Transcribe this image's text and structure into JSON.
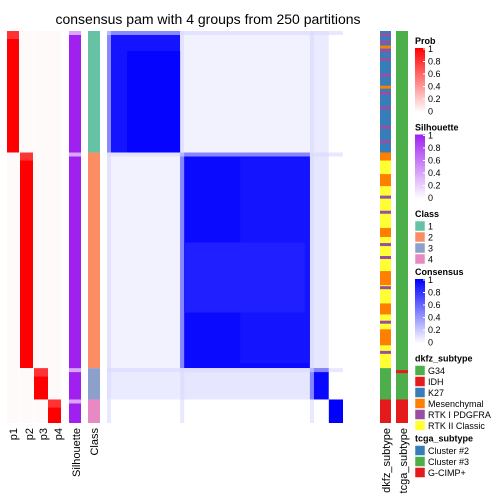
{
  "title": "consensus pam with 4 groups from 250 partitions",
  "chart_data": {
    "type": "heatmap",
    "title": "consensus pam with 4 groups from 250 partitions",
    "groups": [
      "1",
      "2",
      "3",
      "4"
    ],
    "group_fraction": [
      0.31,
      0.55,
      0.08,
      0.06
    ],
    "left_annotations": [
      "p1",
      "p2",
      "p3",
      "p4",
      "Silhouette",
      "Class"
    ],
    "right_annotations": [
      "dkfz_subtype",
      "tcga_subtype"
    ],
    "class_colors": {
      "1": "#66C2A5",
      "2": "#FC8D62",
      "3": "#8DA0CB",
      "4": "#E78AC3"
    },
    "consensus_within_group": [
      0.92,
      0.96,
      0.97,
      1.0
    ],
    "consensus_matrix": [
      [
        0.92,
        0.05,
        0.08,
        0.0
      ],
      [
        0.05,
        0.96,
        0.1,
        0.0
      ],
      [
        0.08,
        0.1,
        0.97,
        0.0
      ],
      [
        0.0,
        0.0,
        0.0,
        1.0
      ]
    ],
    "legends": [
      {
        "title": "Prob",
        "type": "continuous",
        "ticks": [
          "1",
          "0.8",
          "0.6",
          "0.4",
          "0.2",
          "0"
        ],
        "color_low": "#ffffff",
        "color_high": "#ff0000"
      },
      {
        "title": "Silhouette",
        "type": "continuous",
        "ticks": [
          "1",
          "0.8",
          "0.6",
          "0.4",
          "0.2",
          "0"
        ],
        "color_low": "#ffffff",
        "color_high": "#a020f0"
      },
      {
        "title": "Class",
        "type": "discrete",
        "items": [
          {
            "label": "1",
            "color": "#66C2A5"
          },
          {
            "label": "2",
            "color": "#FC8D62"
          },
          {
            "label": "3",
            "color": "#8DA0CB"
          },
          {
            "label": "4",
            "color": "#E78AC3"
          }
        ]
      },
      {
        "title": "Consensus",
        "type": "continuous",
        "ticks": [
          "1",
          "0.8",
          "0.6",
          "0.4",
          "0.2",
          "0"
        ],
        "color_low": "#ffffff",
        "color_high": "#0000ff"
      },
      {
        "title": "dkfz_subtype",
        "type": "discrete",
        "items": [
          {
            "label": "G34",
            "color": "#4DAF4A"
          },
          {
            "label": "IDH",
            "color": "#E41A1C"
          },
          {
            "label": "K27",
            "color": "#377EB8"
          },
          {
            "label": "Mesenchymal",
            "color": "#FF7F00"
          },
          {
            "label": "RTK I PDGFRA",
            "color": "#984EA3"
          },
          {
            "label": "RTK II Classic",
            "color": "#FFFF33"
          }
        ]
      },
      {
        "title": "tcga_subtype",
        "type": "discrete",
        "items": [
          {
            "label": "Cluster #2",
            "color": "#377EB8"
          },
          {
            "label": "Cluster #3",
            "color": "#4DAF4A"
          },
          {
            "label": "G-CIMP+",
            "color": "#E41A1C"
          }
        ]
      }
    ]
  }
}
